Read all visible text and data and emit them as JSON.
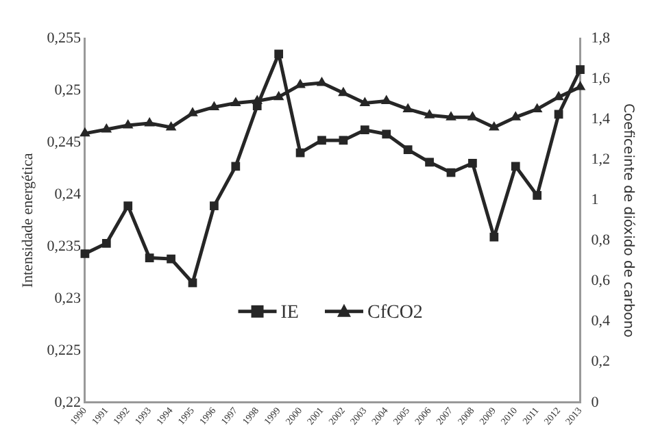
{
  "chart_data": {
    "type": "line",
    "xlabel": null,
    "ylabel": "Intensidade energética",
    "y2label": "Coeficeinte de dióxido de carbono",
    "categories": [
      "1990",
      "1991",
      "1992",
      "1993",
      "1994",
      "1995",
      "1996",
      "1997",
      "1998",
      "1999",
      "2000",
      "2001",
      "2002",
      "2003",
      "2004",
      "2005",
      "2006",
      "2007",
      "2008",
      "2009",
      "2010",
      "2011",
      "2012",
      "2013"
    ],
    "series": [
      {
        "name": "IE",
        "color": "#262626",
        "marker": "square",
        "values": [
          0.2343,
          0.2353,
          0.2389,
          0.2339,
          0.2338,
          0.2315,
          0.2389,
          0.2427,
          0.2485,
          0.2535,
          0.244,
          0.2452,
          0.2452,
          0.2462,
          0.2458,
          0.2443,
          0.2431,
          0.2421,
          0.243,
          0.2359,
          0.2427,
          0.2399,
          0.2477,
          0.252
        ]
      },
      {
        "name": "CfCO2",
        "color": "#262626",
        "marker": "triangle",
        "axis": "y2",
        "values": [
          1.33,
          1.35,
          1.37,
          1.38,
          1.36,
          1.43,
          1.46,
          1.48,
          1.49,
          1.51,
          1.57,
          1.58,
          1.53,
          1.48,
          1.49,
          1.45,
          1.42,
          1.41,
          1.41,
          1.36,
          1.41,
          1.45,
          1.51,
          1.56
        ]
      }
    ],
    "ylim": [
      0.22,
      0.255
    ],
    "yticks": [
      {
        "value": 0.22,
        "label": "0,22"
      },
      {
        "value": 0.225,
        "label": "0,225"
      },
      {
        "value": 0.23,
        "label": "0,23"
      },
      {
        "value": 0.235,
        "label": "0,235"
      },
      {
        "value": 0.24,
        "label": "0,24"
      },
      {
        "value": 0.245,
        "label": "0,245"
      },
      {
        "value": 0.25,
        "label": "0,25"
      },
      {
        "value": 0.255,
        "label": "0,255"
      }
    ],
    "y2lim": [
      0,
      1.8
    ],
    "y2ticks": [
      0,
      {
        "value": 0.2,
        "label": "0,2"
      },
      {
        "value": 0.4,
        "label": "0,4"
      },
      {
        "value": 0.6,
        "label": "0,6"
      },
      {
        "value": 0.8,
        "label": "0,8"
      },
      1,
      {
        "value": 1.2,
        "label": "1,2"
      },
      {
        "value": 1.4,
        "label": "1,4"
      },
      {
        "value": 1.6,
        "label": "1,6"
      },
      {
        "value": 1.8,
        "label": "1,8"
      }
    ],
    "grid": false,
    "legend": "bottom",
    "line_style": "solid"
  }
}
